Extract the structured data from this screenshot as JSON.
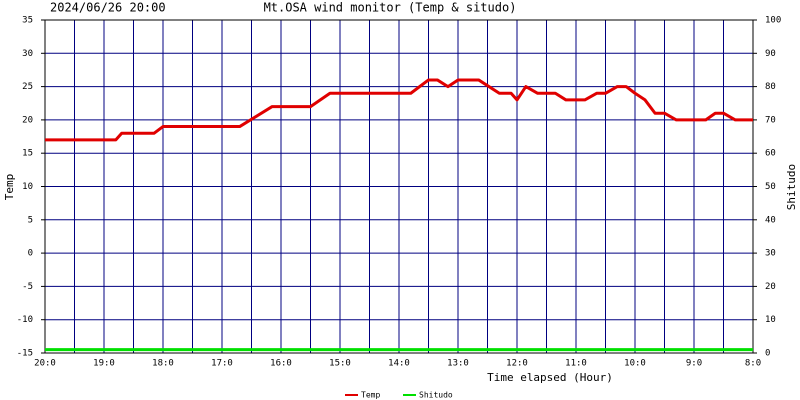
{
  "chart_data": {
    "type": "line",
    "title": "Mt.OSA wind monitor (Temp & situdo)",
    "subtitle": "2024/06/26 20:00",
    "x_label": "Time elapsed (Hour)",
    "y_label": "Temp",
    "y2_label": "Shitudo",
    "xlim": [
      0,
      12
    ],
    "xticks": [
      {
        "value": 0,
        "label": "20:0"
      },
      {
        "value": 1,
        "label": "19:0"
      },
      {
        "value": 2,
        "label": "18:0"
      },
      {
        "value": 3,
        "label": "17:0"
      },
      {
        "value": 4,
        "label": "16:0"
      },
      {
        "value": 5,
        "label": "15:0"
      },
      {
        "value": 6,
        "label": "14:0"
      },
      {
        "value": 7,
        "label": "13:0"
      },
      {
        "value": 8,
        "label": "12:0"
      },
      {
        "value": 9,
        "label": "11:0"
      },
      {
        "value": 10,
        "label": "10:0"
      },
      {
        "value": 11,
        "label": "9:0"
      },
      {
        "value": 12,
        "label": "8:0"
      }
    ],
    "xminor_ticks": [
      0.5,
      1.5,
      2.5,
      3.5,
      4.5,
      5.5,
      6.5,
      7.5,
      8.5,
      9.5,
      10.5,
      11.5
    ],
    "ylim": [
      -15,
      35
    ],
    "yticks": [
      -15,
      -10,
      -5,
      0,
      5,
      10,
      15,
      20,
      25,
      30,
      35
    ],
    "y2lim": [
      0,
      100
    ],
    "y2ticks": [
      0,
      10,
      20,
      30,
      40,
      50,
      60,
      70,
      80,
      90,
      100
    ],
    "grid": true,
    "grid_color": "#000080",
    "series": [
      {
        "name": "Temp",
        "color": "#e00000",
        "x": [
          0,
          1.2,
          1.3,
          1.85,
          2.0,
          3.3,
          3.85,
          4.5,
          4.83,
          6.2,
          6.5,
          6.65,
          6.83,
          7.0,
          7.35,
          7.7,
          7.9,
          8.0,
          8.15,
          8.35,
          8.65,
          8.83,
          9.15,
          9.35,
          9.5,
          9.7,
          9.85,
          10.0,
          10.17,
          10.34,
          10.5,
          10.7,
          11.2,
          11.36,
          11.5,
          11.7,
          12
        ],
        "values": [
          17,
          17,
          18,
          18,
          19,
          19,
          22,
          22,
          24,
          24,
          26,
          26,
          25,
          26,
          26,
          24,
          24,
          23,
          25,
          24,
          24,
          23,
          23,
          24,
          24,
          25,
          25,
          24,
          23,
          21,
          21,
          20,
          20,
          21,
          21,
          20,
          20
        ]
      },
      {
        "name": "Shitudo",
        "color": "#00e000",
        "axis": "y2",
        "x": [
          0,
          12
        ],
        "values": [
          1,
          1
        ]
      }
    ]
  }
}
